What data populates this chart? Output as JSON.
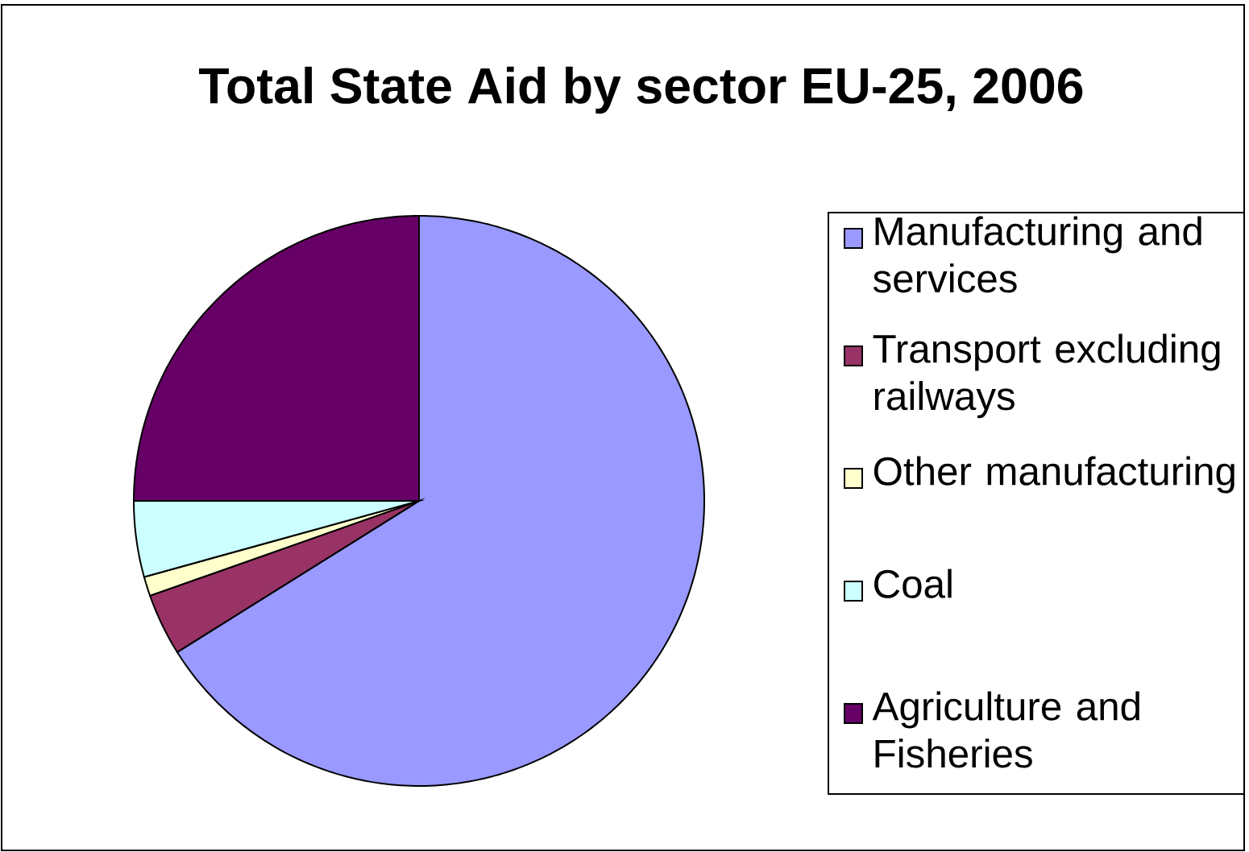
{
  "chart_data": {
    "type": "pie",
    "title": "Total State Aid by sector EU-25, 2006",
    "categories": [
      "Manufacturing and services",
      "Transport excluding railways",
      "Other manufacturing",
      "Coal",
      "Agriculture and Fisheries"
    ],
    "values": [
      66.1,
      3.5,
      1.1,
      4.3,
      25.0
    ],
    "colors": [
      "#9999ff",
      "#993366",
      "#ffffcc",
      "#ccffff",
      "#660066"
    ],
    "legend": "right"
  }
}
